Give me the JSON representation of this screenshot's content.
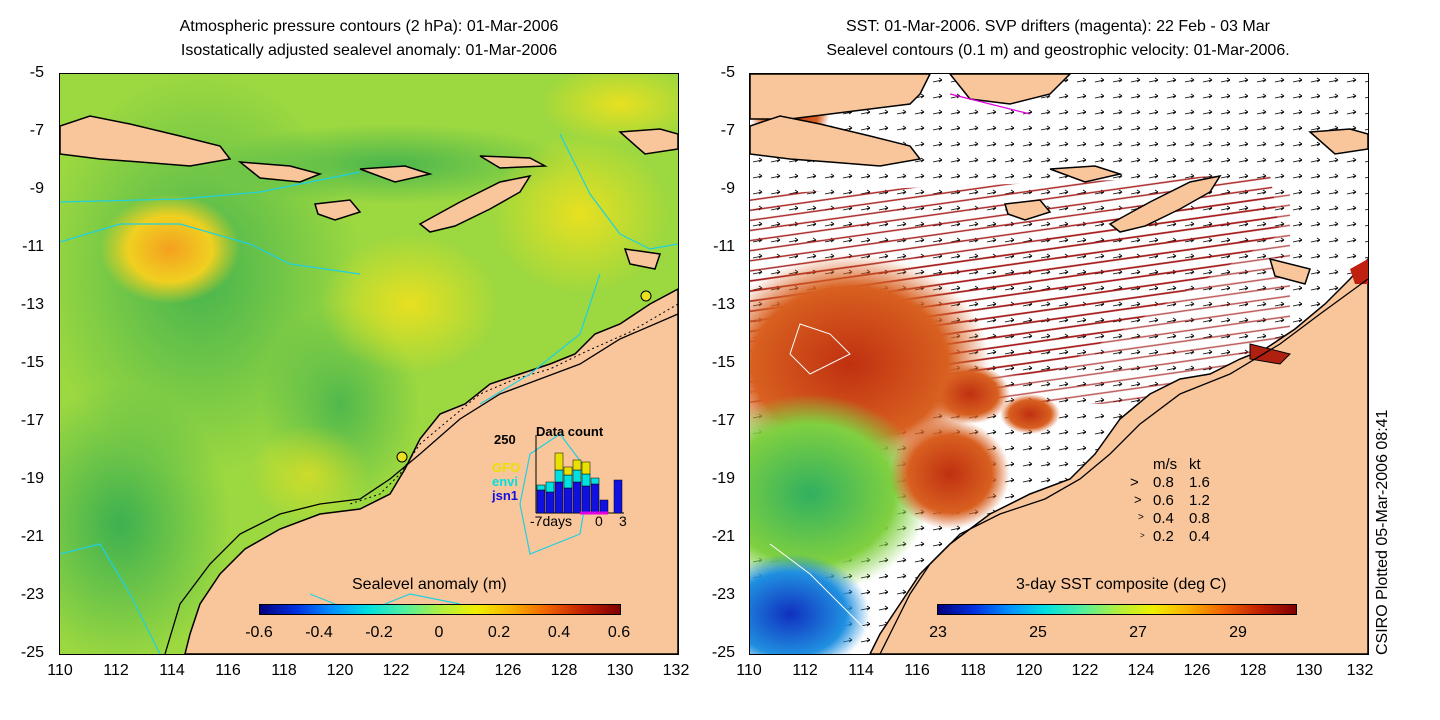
{
  "left_panel": {
    "title_line1": "Atmospheric pressure contours (2 hPa): 01-Mar-2006",
    "title_line2": "Isostatically adjusted sealevel anomaly: 01-Mar-2006",
    "colorbar_title": "Sealevel anomaly (m)",
    "colorbar_ticks": [
      "-0.6",
      "-0.4",
      "-0.2",
      "0",
      "0.2",
      "0.4",
      "0.6"
    ],
    "inset": {
      "title": "Data count",
      "ymax": "250",
      "labels": [
        "GFO",
        "envi",
        "jsn1"
      ],
      "label_colors": [
        "#e8e000",
        "#00e0e0",
        "#1010e0"
      ],
      "x_ticks": [
        "-7days",
        "0",
        "3"
      ]
    }
  },
  "right_panel": {
    "title_line1": "SST: 01-Mar-2006. SVP drifters (magenta): 22 Feb - 03 Mar",
    "title_line2": "Sealevel contours (0.1 m) and geostrophic velocity: 01-Mar-2006.",
    "colorbar_title": "3-day SST composite (deg C)",
    "colorbar_ticks": [
      "23",
      "25",
      "27",
      "29"
    ],
    "speed_legend": {
      "header_ms": "m/s",
      "header_kt": "kt",
      "rows": [
        {
          "ms": "0.8",
          "kt": "1.6"
        },
        {
          "ms": "0.6",
          "kt": "1.2"
        },
        {
          "ms": "0.4",
          "kt": "0.8"
        },
        {
          "ms": "0.2",
          "kt": "0.4"
        }
      ]
    }
  },
  "axes": {
    "y_ticks": [
      "-5",
      "-7",
      "-9",
      "-11",
      "-13",
      "-15",
      "-17",
      "-19",
      "-21",
      "-23",
      "-25"
    ],
    "x_ticks": [
      "110",
      "112",
      "114",
      "116",
      "118",
      "120",
      "122",
      "124",
      "126",
      "128",
      "130",
      "132"
    ]
  },
  "credit": "CSIRO Plotted 05-Mar-2006 08:41",
  "colors": {
    "land": "#f9c69b",
    "ocean_base": "#a8e03a",
    "ssl_bar": [
      "#00007f",
      "#0050ff",
      "#00d0ff",
      "#70ff80",
      "#f0f000",
      "#ff8000",
      "#a00000"
    ]
  }
}
